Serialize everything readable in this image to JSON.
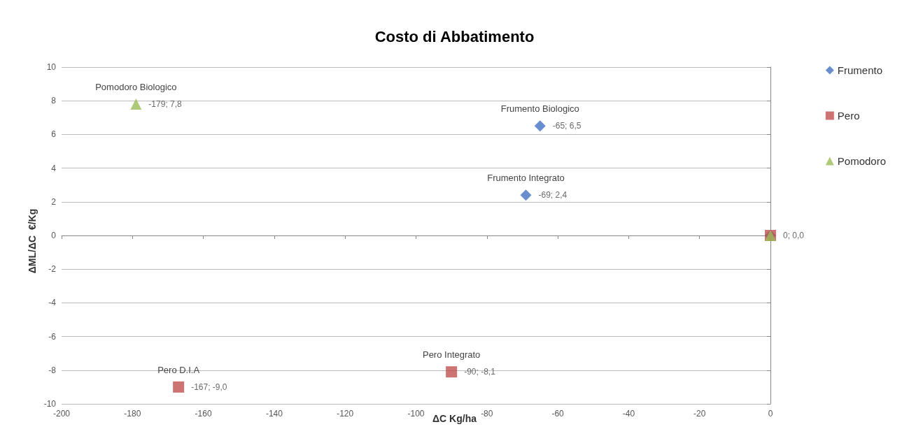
{
  "chart_data": {
    "type": "scatter",
    "title": "Costo di Abbatimento",
    "xlabel": "ΔC Kg/ha",
    "ylabel": "ΔML/ΔC  €/Kg",
    "series": [
      {
        "name": "Frumento",
        "color": "#4472c4",
        "marker": "diamond",
        "x": [
          -65,
          -69,
          0
        ],
        "values": [
          6.5,
          2.4,
          0
        ],
        "value_labels": [
          "-65; 6,5",
          "-69; 2,4",
          null
        ]
      },
      {
        "name": "Pero",
        "color": "#c0504d",
        "marker": "square",
        "x": [
          -90,
          -167,
          0
        ],
        "values": [
          -8.1,
          -9.0,
          0
        ],
        "value_labels": [
          "-90; -8,1",
          "-167; -9,0",
          null
        ]
      },
      {
        "name": "Pomodoro",
        "color": "#9bbb59",
        "marker": "triangle",
        "x": [
          -179,
          0
        ],
        "values": [
          7.8,
          0
        ],
        "value_labels": [
          "-179; 7,8",
          "0; 0,0"
        ]
      }
    ],
    "annotations": [
      {
        "text": "Pomodoro Biologico",
        "x": -179,
        "y": 7.8
      },
      {
        "text": "Frumento Biologico",
        "x": -65,
        "y": 6.5
      },
      {
        "text": "Frumento Integrato",
        "x": -69,
        "y": 2.4
      },
      {
        "text": "Pero Integrato",
        "x": -90,
        "y": -8.1
      },
      {
        "text": "Pero D.I.A",
        "x": -167,
        "y": -9.0
      }
    ],
    "xlim": [
      -200,
      0
    ],
    "xticks": [
      -200,
      -180,
      -160,
      -140,
      -120,
      -100,
      -80,
      -60,
      -40,
      -20,
      0
    ],
    "ylim": [
      -10,
      10
    ],
    "yticks": [
      -10,
      -8,
      -6,
      -4,
      -2,
      0,
      2,
      4,
      6,
      8,
      10
    ],
    "grid": "y",
    "legend": "right"
  }
}
